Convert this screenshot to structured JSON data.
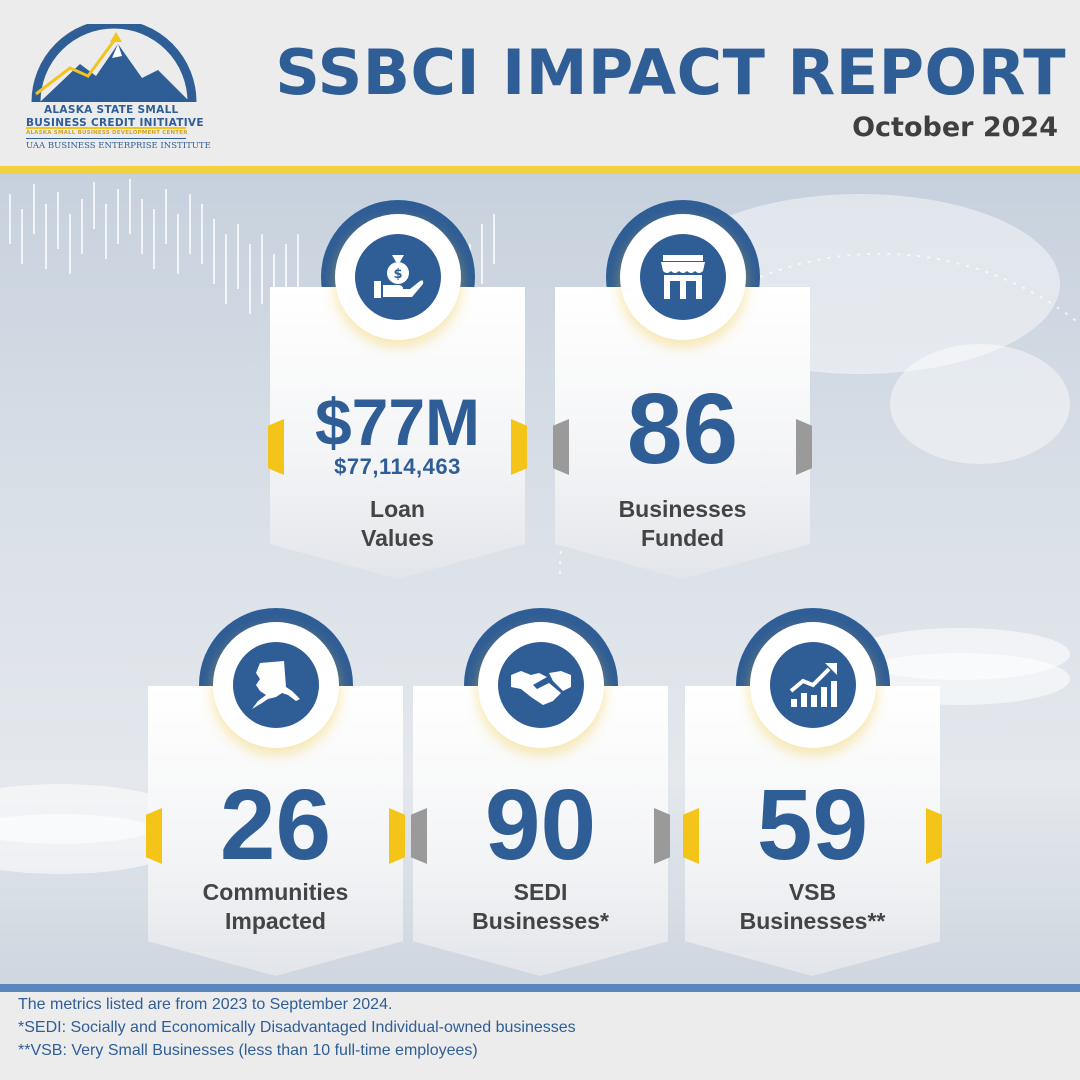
{
  "header": {
    "title": "SSBCI IMPACT REPORT",
    "date": "October 2024",
    "logo": {
      "line1": "ALASKA STATE SMALL",
      "line2": "BUSINESS CREDIT INITIATIVE",
      "line3": "ALASKA SMALL BUSINESS DEVELOPMENT CENTER",
      "line4": "UAA BUSINESS ENTERPRISE INSTITUTE"
    }
  },
  "stats": [
    {
      "value": "$77M",
      "exact": "$77,114,463",
      "label_1": "Loan",
      "label_2": "Values",
      "icon": "money-bag-hand-icon"
    },
    {
      "value": "86",
      "label_1": "Businesses",
      "label_2": "Funded",
      "icon": "storefront-icon"
    },
    {
      "value": "26",
      "label_1": "Communities",
      "label_2": "Impacted",
      "icon": "alaska-map-icon"
    },
    {
      "value": "90",
      "label_1": "SEDI",
      "label_2": "Businesses*",
      "icon": "handshake-icon"
    },
    {
      "value": "59",
      "label_1": "VSB",
      "label_2": "Businesses**",
      "icon": "growth-chart-icon"
    }
  ],
  "footer": {
    "line1": "The metrics listed are from 2023 to September 2024.",
    "line2": "*SEDI: Socially and Economically Disadvantaged Individual-owned businesses",
    "line3": "**VSB: Very Small Businesses (less than 10 full-time employees)"
  },
  "colors": {
    "primary": "#2f5d96",
    "accent": "#f4c518",
    "muted": "#9a9a9a",
    "text": "#444444"
  }
}
